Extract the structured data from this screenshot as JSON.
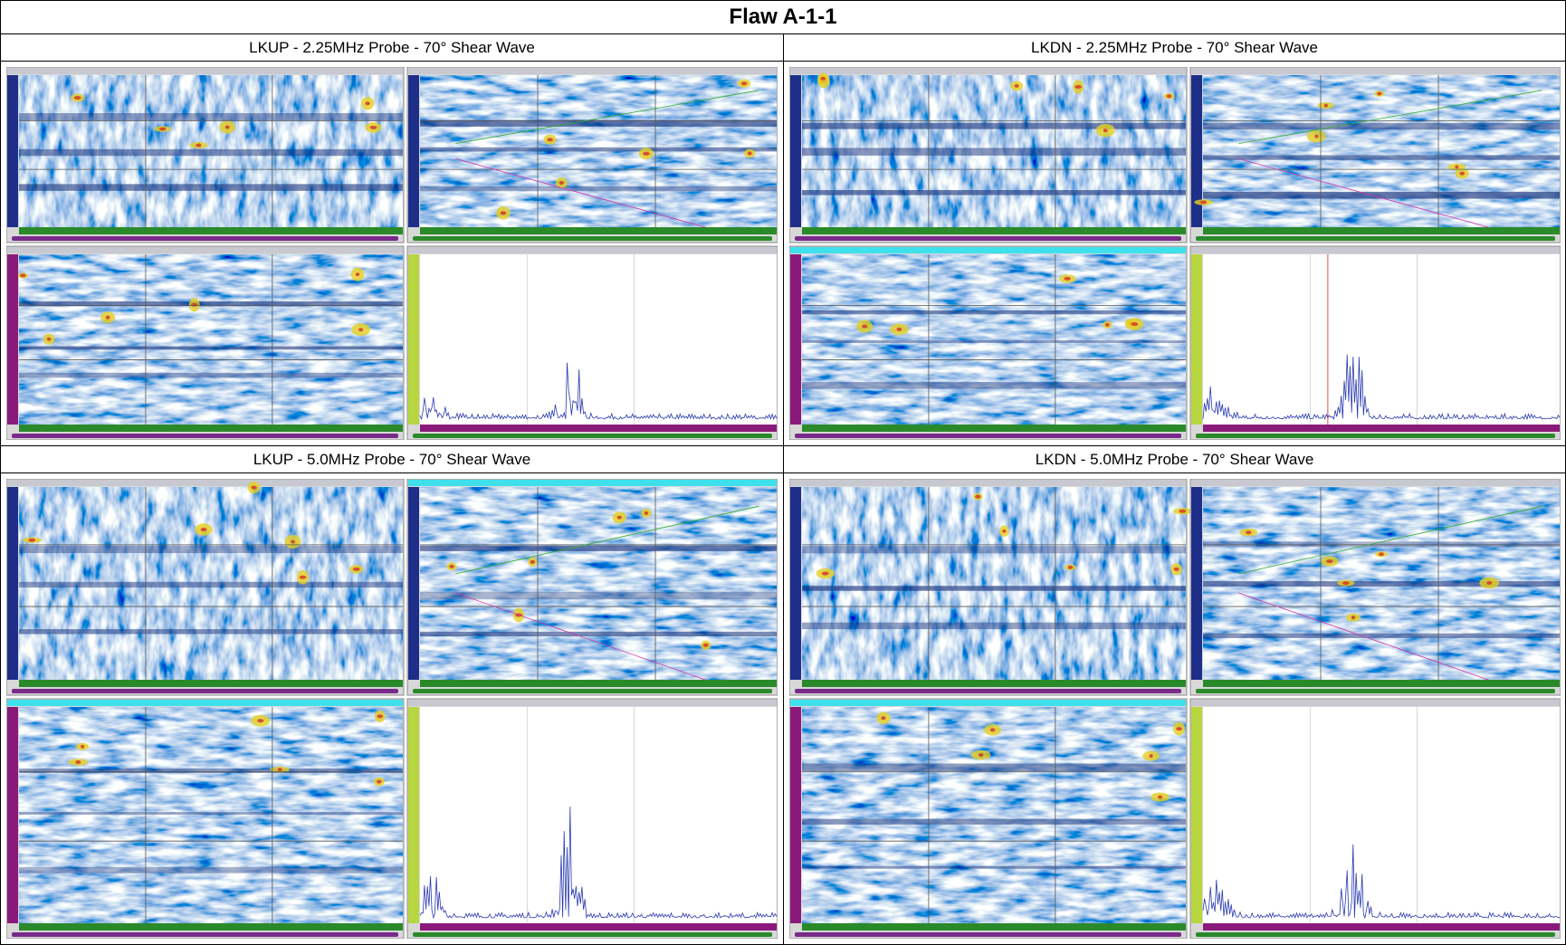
{
  "header": {
    "title": "Flaw A-1-1"
  },
  "panels": [
    {
      "label": "LKUP - 2.25MHz Probe - 70° Shear Wave"
    },
    {
      "label": "LKDN - 2.25MHz Probe - 70° Shear Wave"
    },
    {
      "label": "LKUP - 5.0MHz Probe - 70° Shear Wave"
    },
    {
      "label": "LKDN - 5.0MHz Probe - 70° Shear Wave"
    }
  ]
}
